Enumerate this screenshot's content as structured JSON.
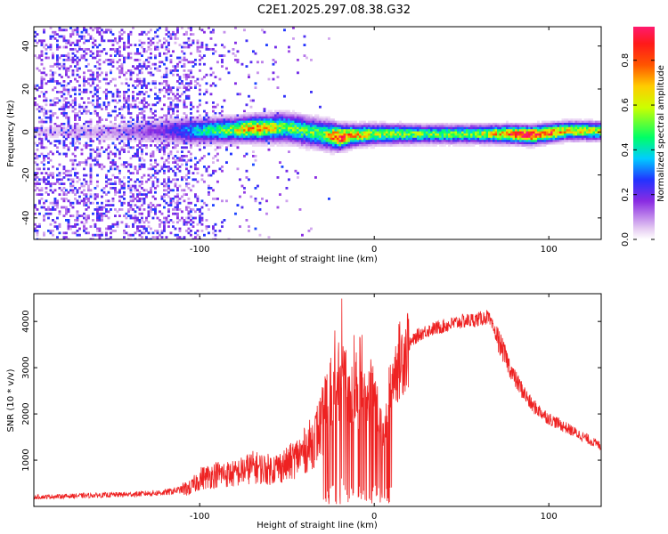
{
  "title": "C2E1.2025.297.08.38.G32",
  "chart_data": [
    {
      "type": "heatmap",
      "xlabel": "Height of straight line (km)",
      "ylabel": "Frequency (Hz)",
      "xlim": [
        -195,
        130
      ],
      "ylim": [
        -50,
        49
      ],
      "xticks": [
        -100,
        0,
        100
      ],
      "xtick_labels": [
        "-100",
        "0",
        "100"
      ],
      "yticks": [
        -40,
        -20,
        0,
        20,
        40
      ],
      "ytick_labels": [
        "-40",
        "-20",
        "0",
        "20",
        "40"
      ],
      "colorbar": {
        "label": "Normalized spectral amplitude",
        "range": [
          0,
          0.95
        ],
        "ticks": [
          0.0,
          0.2,
          0.4,
          0.6,
          0.8
        ],
        "tick_labels": [
          "0.0",
          "0.2",
          "0.4",
          "0.6",
          "0.8"
        ]
      },
      "ridge_profile": [
        {
          "x": -195,
          "center": 0.0,
          "width": 2.0,
          "amplitude": 0.05
        },
        {
          "x": -150,
          "center": 0.0,
          "width": 2.5,
          "amplitude": 0.08
        },
        {
          "x": -120,
          "center": 0.5,
          "width": 3.0,
          "amplitude": 0.18
        },
        {
          "x": -100,
          "center": 0.5,
          "width": 3.0,
          "amplitude": 0.4
        },
        {
          "x": -80,
          "center": 1.0,
          "width": 3.0,
          "amplitude": 0.55
        },
        {
          "x": -70,
          "center": 1.5,
          "width": 3.0,
          "amplitude": 0.75
        },
        {
          "x": -50,
          "center": 2.0,
          "width": 3.5,
          "amplitude": 0.5
        },
        {
          "x": -30,
          "center": -1.0,
          "width": 3.5,
          "amplitude": 0.5
        },
        {
          "x": -20,
          "center": -2.5,
          "width": 3.0,
          "amplitude": 0.9
        },
        {
          "x": -10,
          "center": -1.5,
          "width": 2.5,
          "amplitude": 0.7
        },
        {
          "x": 0,
          "center": -1.0,
          "width": 2.5,
          "amplitude": 0.55
        },
        {
          "x": 30,
          "center": -1.0,
          "width": 2.2,
          "amplitude": 0.5
        },
        {
          "x": 60,
          "center": -1.0,
          "width": 2.2,
          "amplitude": 0.55
        },
        {
          "x": 80,
          "center": -1.0,
          "width": 2.2,
          "amplitude": 0.8
        },
        {
          "x": 90,
          "center": -1.5,
          "width": 2.2,
          "amplitude": 0.95
        },
        {
          "x": 110,
          "center": 0.5,
          "width": 2.2,
          "amplitude": 0.65
        },
        {
          "x": 130,
          "center": 0.5,
          "width": 2.2,
          "amplitude": 0.6
        }
      ]
    },
    {
      "type": "line",
      "xlabel": "Height of straight line (km)",
      "ylabel": "SNR (10 * v/v)",
      "xlim": [
        -195,
        130
      ],
      "ylim": [
        0,
        4600
      ],
      "xticks": [
        -100,
        0,
        100
      ],
      "xtick_labels": [
        "-100",
        "0",
        "100"
      ],
      "yticks": [
        1000,
        2000,
        3000,
        4000
      ],
      "ytick_labels": [
        "1000",
        "2000",
        "3000",
        "4000"
      ],
      "series": [
        {
          "name": "SNR",
          "color": "#ee2222",
          "envelope": {
            "x": [
              -195,
              -170,
              -140,
              -120,
              -105,
              -100,
              -90,
              -80,
              -70,
              -60,
              -50,
              -40,
              -35,
              -30,
              -25,
              -20,
              -18,
              -15,
              -10,
              -5,
              0,
              5,
              10,
              15,
              20,
              25,
              30,
              40,
              50,
              60,
              65,
              70,
              80,
              90,
              100,
              110,
              120,
              130
            ],
            "y": [
              200,
              230,
              260,
              300,
              400,
              600,
              700,
              700,
              850,
              800,
              900,
              1200,
              1400,
              1800,
              2300,
              2800,
              3200,
              2300,
              2200,
              2500,
              2600,
              1400,
              2800,
              3200,
              3500,
              3700,
              3800,
              3900,
              4000,
              4050,
              4100,
              3700,
              2800,
              2200,
              1900,
              1700,
              1500,
              1300
            ]
          }
        }
      ]
    }
  ]
}
